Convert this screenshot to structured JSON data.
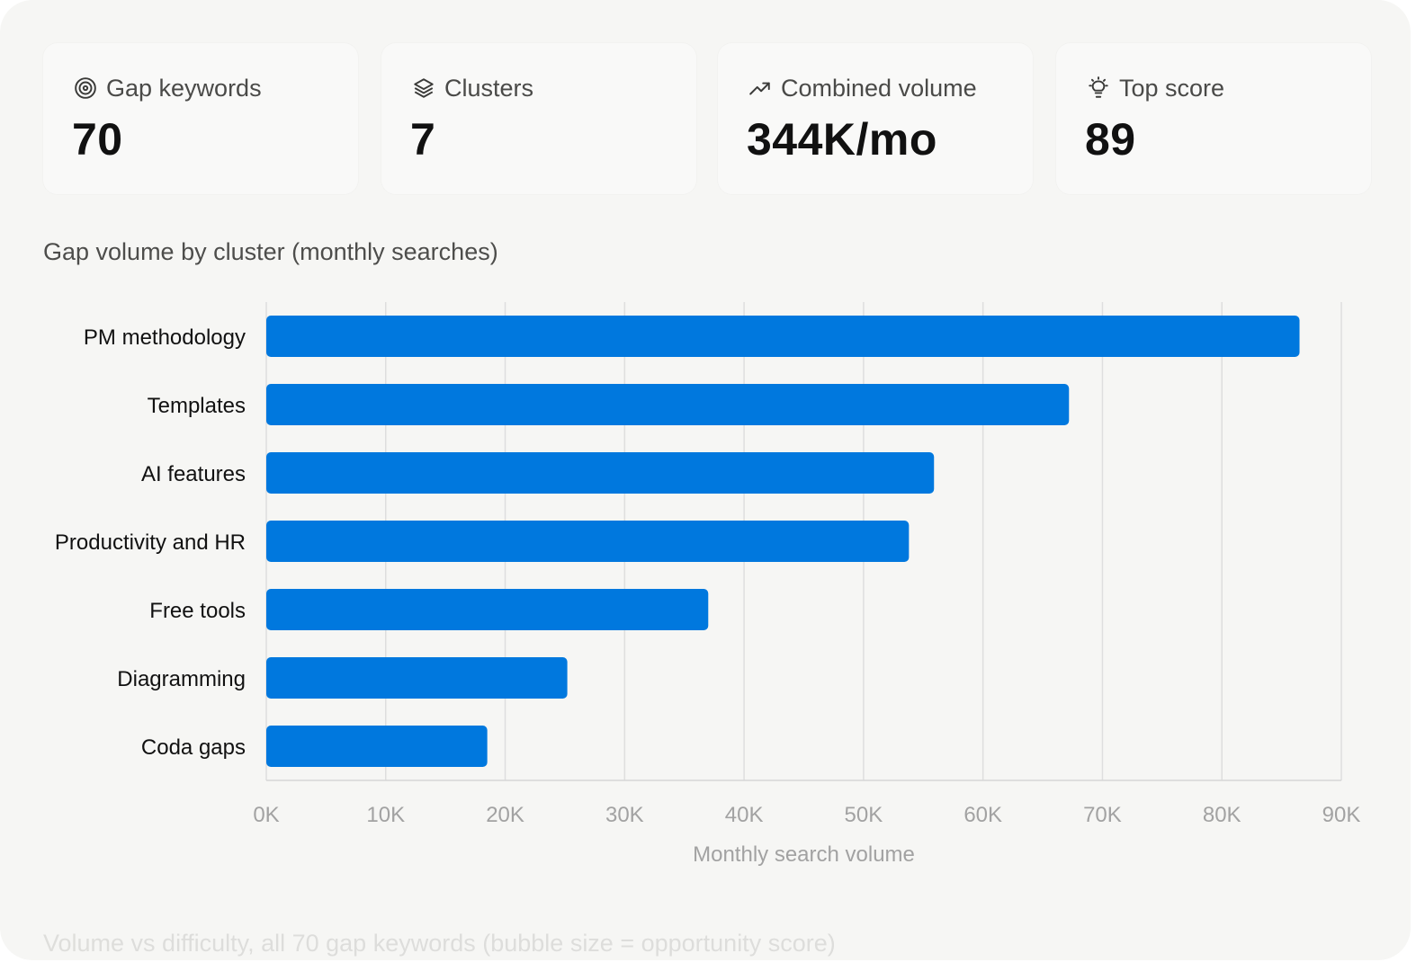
{
  "cards": [
    {
      "label": "Gap keywords",
      "value": "70",
      "icon": "target-icon"
    },
    {
      "label": "Clusters",
      "value": "7",
      "icon": "layers-icon"
    },
    {
      "label": "Combined volume",
      "value": "344K/mo",
      "icon": "trending-up-icon"
    },
    {
      "label": "Top score",
      "value": "89",
      "icon": "lightbulb-icon"
    }
  ],
  "chart_title": "Gap volume by cluster (monthly searches)",
  "next_section_title": "Volume vs difficulty, all 70 gap keywords (bubble size = opportunity score)",
  "colors": {
    "bar": "#0078de",
    "grid": "#dedede",
    "tick_text": "#a2a2a2",
    "category_text": "#111111"
  },
  "chart_data": {
    "type": "bar",
    "orientation": "horizontal",
    "categories": [
      "PM methodology",
      "Templates",
      "AI features",
      "Productivity and HR",
      "Free tools",
      "Diagramming",
      "Coda gaps"
    ],
    "values": [
      86500,
      67200,
      55900,
      53800,
      37000,
      25200,
      18500
    ],
    "xlabel": "Monthly search volume",
    "ylabel": "",
    "xlim": [
      0,
      90000
    ],
    "xticks": [
      "0K",
      "10K",
      "20K",
      "30K",
      "40K",
      "50K",
      "60K",
      "70K",
      "80K",
      "90K"
    ],
    "grid": true
  }
}
